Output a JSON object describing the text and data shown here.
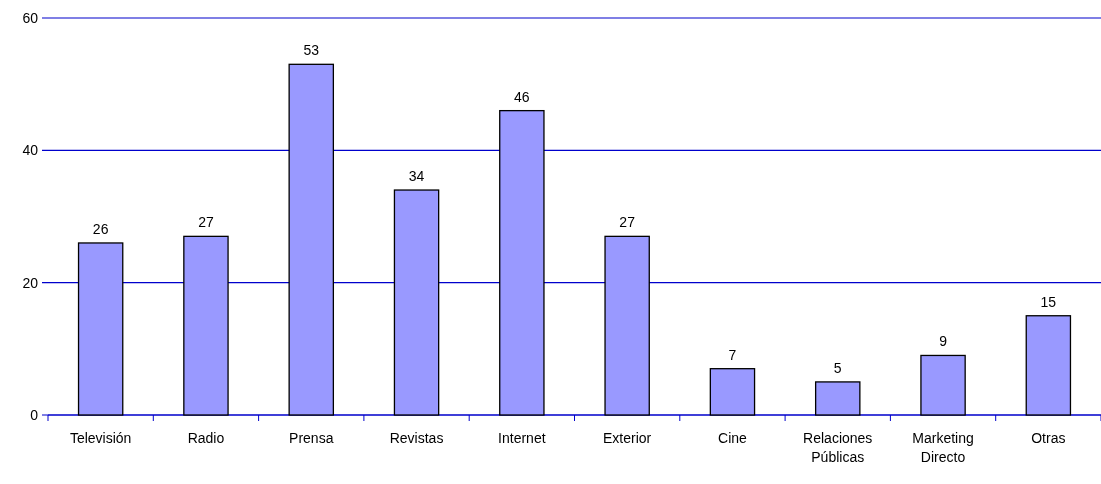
{
  "chart_data": {
    "type": "bar",
    "categories": [
      "Televisión",
      "Radio",
      "Prensa",
      "Revistas",
      "Internet",
      "Exterior",
      "Cine",
      "Relaciones Públicas",
      "Marketing Directo",
      "Otras"
    ],
    "values": [
      26,
      27,
      53,
      34,
      46,
      27,
      7,
      5,
      9,
      15
    ],
    "color": "#9999ff",
    "ylim": [
      0,
      60
    ],
    "yticks": [
      0,
      20,
      40,
      60
    ],
    "grid": "y",
    "data_labels": true
  }
}
